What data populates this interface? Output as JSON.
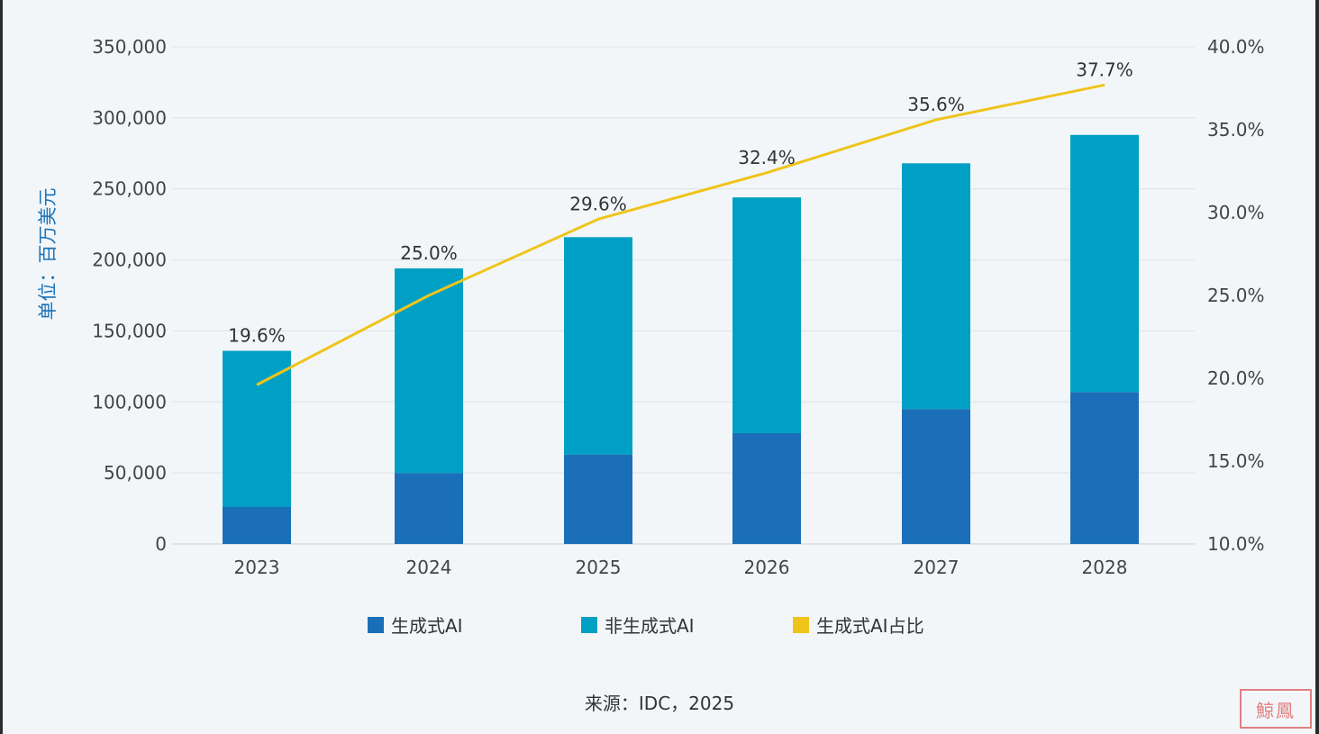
{
  "chart_data": {
    "type": "bar",
    "categories": [
      "2023",
      "2024",
      "2025",
      "2026",
      "2027",
      "2028"
    ],
    "series": [
      {
        "name": "生成式AI",
        "type": "bar",
        "axis": "left",
        "color": "#1a6fb8",
        "values": [
          26000,
          50000,
          63000,
          78000,
          95000,
          107000
        ]
      },
      {
        "name": "非生成式AI",
        "type": "bar",
        "axis": "left",
        "color": "#00a0c4",
        "values": [
          110000,
          144000,
          153000,
          166000,
          173000,
          181000
        ]
      },
      {
        "name": "生成式AI占比",
        "type": "line",
        "axis": "right",
        "color": "#efc41a",
        "values": [
          19.6,
          25.0,
          29.6,
          32.4,
          35.6,
          37.7
        ],
        "labels": [
          "19.6%",
          "25.0%",
          "29.6%",
          "32.4%",
          "35.6%",
          "37.7%"
        ]
      }
    ],
    "stacked": true,
    "ylabel": "单位：百万美元",
    "ylim": [
      0,
      350000
    ],
    "y_ticks": [
      "0",
      "50,000",
      "100,000",
      "150,000",
      "200,000",
      "250,000",
      "300,000",
      "350,000"
    ],
    "y2lim": [
      10,
      40
    ],
    "y2_ticks": [
      "10.0%",
      "15.0%",
      "20.0%",
      "25.0%",
      "30.0%",
      "35.0%",
      "40.0%"
    ],
    "grid": true,
    "legend_position": "bottom"
  },
  "legend": [
    "生成式AI",
    "非生成式AI",
    "生成式AI占比"
  ],
  "source": "来源：IDC，2025",
  "stamp_text": "鯨鳳"
}
